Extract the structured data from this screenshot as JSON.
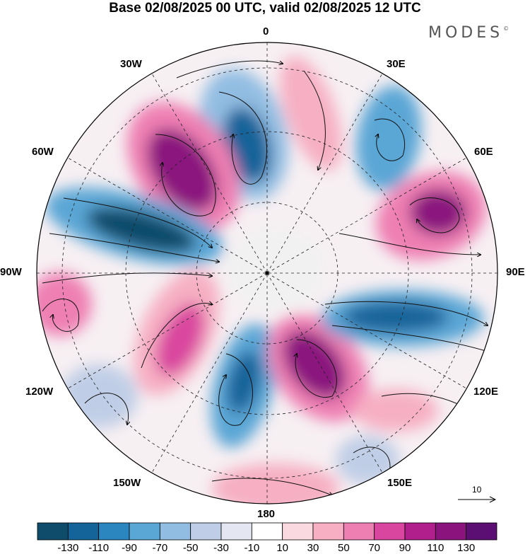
{
  "title": "Base 02/08/2025 00 UTC, valid 02/08/2025 12 UTC",
  "brand": {
    "name": "MODES",
    "mark": "©"
  },
  "longitude_labels": {
    "lon_0": "0",
    "lon_30e": "30E",
    "lon_60e": "60E",
    "lon_90e": "90E",
    "lon_120e": "120E",
    "lon_150e": "150E",
    "lon_180": "180",
    "lon_150w": "150W",
    "lon_120w": "120W",
    "lon_90w": "90W",
    "lon_60w": "60W",
    "lon_30w": "30W"
  },
  "reference_vector": {
    "label": "10"
  },
  "colorbar": {
    "colors": [
      "#0f4c6c",
      "#14649a",
      "#2b86c0",
      "#5aa6d5",
      "#92bde2",
      "#bfcde6",
      "#e4e6f1",
      "#ffffff",
      "#fbd9e0",
      "#f6afc3",
      "#ee7fb2",
      "#d9469f",
      "#b01f8b",
      "#8a137e",
      "#5b0f73"
    ],
    "tick_labels": [
      "-130",
      "-110",
      "-90",
      "-70",
      "-50",
      "-30",
      "-10",
      "10",
      "30",
      "50",
      "70",
      "90",
      "110",
      "130"
    ]
  },
  "anomaly_centers": [
    {
      "name": "negative-center-north",
      "sign": "negative",
      "intensity": "strong"
    },
    {
      "name": "positive-center-northwest",
      "sign": "positive",
      "intensity": "very-strong"
    },
    {
      "name": "negative-center-west",
      "sign": "negative",
      "intensity": "strong"
    },
    {
      "name": "positive-center-far-west",
      "sign": "positive",
      "intensity": "moderate"
    },
    {
      "name": "positive-center-southwest",
      "sign": "positive",
      "intensity": "moderate"
    },
    {
      "name": "negative-center-south",
      "sign": "negative",
      "intensity": "strong"
    },
    {
      "name": "positive-center-south-east",
      "sign": "positive",
      "intensity": "very-strong"
    },
    {
      "name": "negative-center-east",
      "sign": "negative",
      "intensity": "strong"
    },
    {
      "name": "positive-center-northeast",
      "sign": "positive",
      "intensity": "very-strong"
    },
    {
      "name": "negative-center-north-east",
      "sign": "negative",
      "intensity": "moderate"
    },
    {
      "name": "positive-center-north-center",
      "sign": "positive",
      "intensity": "weak"
    }
  ]
}
